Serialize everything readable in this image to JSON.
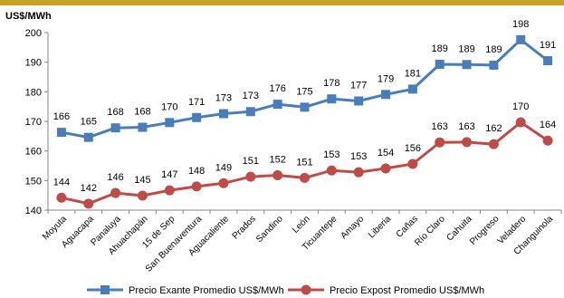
{
  "chart_data": {
    "type": "line",
    "ylabel": "US$/MWh",
    "ylim": [
      140,
      200
    ],
    "yticks": [
      140,
      150,
      160,
      170,
      180,
      190,
      200
    ],
    "grid": false,
    "legend_position": "bottom",
    "categories": [
      "Moyuta",
      "Aguacapa",
      "Panaluya",
      "Ahuachapán",
      "15 de Sep",
      "San Buenaventura",
      "Aguacaliente",
      "Prados",
      "Sandino",
      "León",
      "Ticuantepe",
      "Amayo",
      "Liberia",
      "Cañas",
      "Río Claro",
      "Cahuita",
      "Progreso",
      "Veladero",
      "Changuinola"
    ],
    "series": [
      {
        "name": "Precio Exante Promedio US$/MWh",
        "color": "#4a7ebb",
        "marker": "square",
        "values": [
          166.3,
          164.6,
          167.8,
          168.0,
          169.6,
          171.3,
          172.6,
          173.3,
          175.8,
          174.8,
          177.6,
          176.9,
          179.1,
          180.9,
          189.3,
          189.2,
          189.0,
          197.6,
          190.5
        ],
        "labels": [
          "166",
          "165",
          "168",
          "168",
          "170",
          "171",
          "173",
          "173",
          "176",
          "175",
          "178",
          "177",
          "179",
          "181",
          "189",
          "189",
          "189",
          "198",
          "191"
        ]
      },
      {
        "name": "Precio Expost Promedio US$/MWh",
        "color": "#be4b48",
        "marker": "circle",
        "values": [
          144.2,
          142.2,
          145.8,
          144.9,
          146.7,
          148.0,
          149.1,
          151.3,
          151.8,
          150.9,
          153.4,
          152.8,
          154.1,
          155.6,
          162.9,
          163.0,
          162.3,
          169.7,
          163.5
        ],
        "labels": [
          "144",
          "142",
          "146",
          "145",
          "147",
          "148",
          "149",
          "151",
          "152",
          "151",
          "153",
          "153",
          "154",
          "156",
          "163",
          "163",
          "162",
          "170",
          "164"
        ]
      }
    ]
  }
}
